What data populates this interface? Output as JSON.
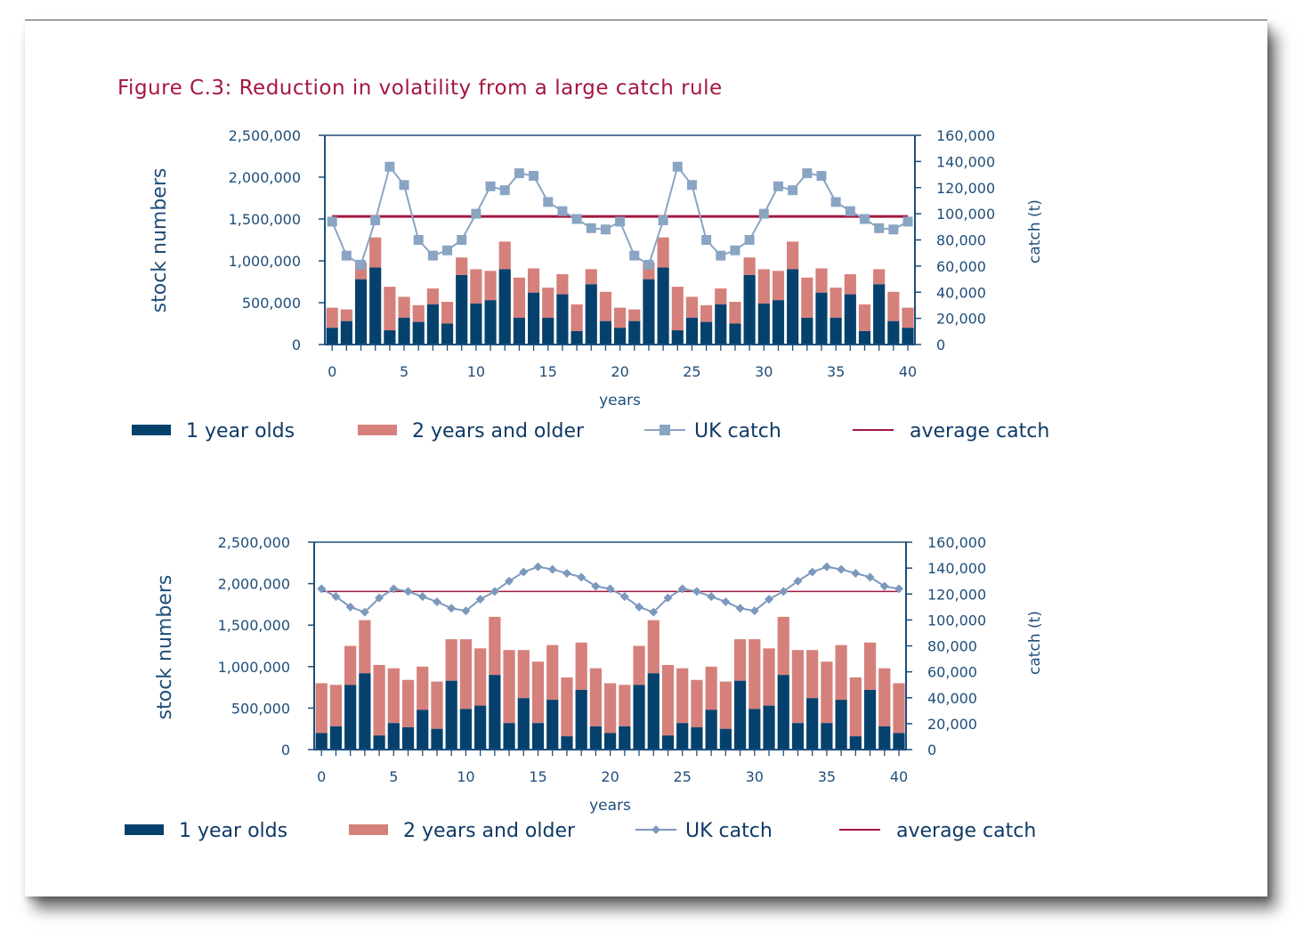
{
  "title": "Figure C.3: Reduction in volatility from a large catch rule",
  "colors": {
    "one_year": "#06416e",
    "two_years": "#d5807b",
    "uk_catch_top": "#8aa4c3",
    "uk_catch_bottom": "#7c98bc",
    "average": "#a3173f",
    "axis": "#1f4e79"
  },
  "charts": [
    {
      "id": "top",
      "type": "bar",
      "stacked": true,
      "xlabel": "years",
      "ylabel_left": "stock numbers",
      "ylabel_right": "catch (t)",
      "xlim": [
        0,
        40
      ],
      "xticks": [
        "0",
        "5",
        "10",
        "15",
        "20",
        "25",
        "30",
        "35",
        "40"
      ],
      "ylim_left": [
        0,
        2500000
      ],
      "yticks_left": [
        "0",
        "500,000",
        "1,000,000",
        "1,500,000",
        "2,000,000",
        "2,500,000"
      ],
      "ylim_right": [
        0,
        160000
      ],
      "yticks_right": [
        "0",
        "20,000",
        "40,000",
        "60,000",
        "80,000",
        "100,000",
        "120,000",
        "140,000",
        "160,000"
      ],
      "marker": "square",
      "legend": {
        "one_year": "1 year olds",
        "two_years": "2 years and older",
        "uk_catch": "UK catch",
        "average": "average catch"
      },
      "legend_position": "bottom",
      "chart_data": {
        "type": "bar",
        "x": [
          0,
          1,
          2,
          3,
          4,
          5,
          6,
          7,
          8,
          9,
          10,
          11,
          12,
          13,
          14,
          15,
          16,
          17,
          18,
          19,
          20,
          21,
          22,
          23,
          24,
          25,
          26,
          27,
          28,
          29,
          30,
          31,
          32,
          33,
          34,
          35,
          36,
          37,
          38,
          39,
          40
        ],
        "series": [
          {
            "name": "1 year olds",
            "values": [
              200000,
              280000,
              780000,
              920000,
              170000,
              320000,
              270000,
              480000,
              250000,
              830000,
              490000,
              530000,
              900000,
              320000,
              620000,
              320000,
              600000,
              160000,
              720000,
              280000,
              200000,
              280000,
              780000,
              920000,
              170000,
              320000,
              270000,
              480000,
              250000,
              830000,
              490000,
              530000,
              900000,
              320000,
              620000,
              320000,
              600000,
              160000,
              720000,
              280000,
              200000
            ]
          },
          {
            "name": "2 years and older",
            "values": [
              240000,
              140000,
              200000,
              360000,
              520000,
              250000,
              200000,
              190000,
              260000,
              210000,
              410000,
              350000,
              330000,
              480000,
              290000,
              360000,
              240000,
              320000,
              180000,
              350000,
              240000,
              140000,
              200000,
              360000,
              520000,
              250000,
              200000,
              190000,
              260000,
              210000,
              410000,
              350000,
              330000,
              480000,
              290000,
              360000,
              240000,
              320000,
              180000,
              350000,
              240000
            ]
          },
          {
            "name": "UK catch",
            "axis": "right",
            "values": [
              94000,
              68000,
              61000,
              95000,
              136000,
              122000,
              80000,
              68000,
              72000,
              80000,
              100000,
              121000,
              118000,
              131000,
              129000,
              109000,
              102000,
              96000,
              89000,
              88000,
              94000,
              68000,
              61000,
              95000,
              136000,
              122000,
              80000,
              68000,
              72000,
              80000,
              100000,
              121000,
              118000,
              131000,
              129000,
              109000,
              102000,
              96000,
              89000,
              88000,
              94000
            ]
          },
          {
            "name": "average catch",
            "axis": "right",
            "value": 98000
          }
        ]
      }
    },
    {
      "id": "bottom",
      "type": "bar",
      "stacked": true,
      "xlabel": "years",
      "ylabel_left": "stock numbers",
      "ylabel_right": "catch (t)",
      "xlim": [
        0,
        40
      ],
      "xticks": [
        "0",
        "5",
        "10",
        "15",
        "20",
        "25",
        "30",
        "35",
        "40"
      ],
      "ylim_left": [
        0,
        2500000
      ],
      "yticks_left": [
        "0",
        "500,000",
        "1,000,000",
        "1,500,000",
        "2,000,000",
        "2,500,000"
      ],
      "ylim_right": [
        0,
        160000
      ],
      "yticks_right": [
        "0",
        "20,000",
        "40,000",
        "60,000",
        "80,000",
        "100,000",
        "120,000",
        "140,000",
        "160,000"
      ],
      "marker": "diamond",
      "legend": {
        "one_year": "1 year olds",
        "two_years": "2 years and older",
        "uk_catch": "UK catch",
        "average": "average catch"
      },
      "legend_position": "bottom",
      "chart_data": {
        "type": "bar",
        "x": [
          0,
          1,
          2,
          3,
          4,
          5,
          6,
          7,
          8,
          9,
          10,
          11,
          12,
          13,
          14,
          15,
          16,
          17,
          18,
          19,
          20,
          21,
          22,
          23,
          24,
          25,
          26,
          27,
          28,
          29,
          30,
          31,
          32,
          33,
          34,
          35,
          36,
          37,
          38,
          39,
          40
        ],
        "series": [
          {
            "name": "1 year olds",
            "values": [
              200000,
              280000,
              780000,
              920000,
              170000,
              320000,
              270000,
              480000,
              250000,
              830000,
              490000,
              530000,
              900000,
              320000,
              620000,
              320000,
              600000,
              160000,
              720000,
              280000,
              200000,
              280000,
              780000,
              920000,
              170000,
              320000,
              270000,
              480000,
              250000,
              830000,
              490000,
              530000,
              900000,
              320000,
              620000,
              320000,
              600000,
              160000,
              720000,
              280000,
              200000
            ]
          },
          {
            "name": "2 years and older",
            "values": [
              600000,
              500000,
              470000,
              640000,
              850000,
              660000,
              570000,
              520000,
              570000,
              500000,
              840000,
              690000,
              700000,
              880000,
              580000,
              740000,
              660000,
              710000,
              570000,
              700000,
              600000,
              500000,
              470000,
              640000,
              850000,
              660000,
              570000,
              520000,
              570000,
              500000,
              840000,
              690000,
              700000,
              880000,
              580000,
              740000,
              660000,
              710000,
              570000,
              700000,
              600000
            ]
          },
          {
            "name": "UK catch",
            "axis": "right",
            "values": [
              124000,
              118000,
              110000,
              106000,
              117000,
              124000,
              122000,
              118000,
              114000,
              109000,
              107000,
              116000,
              122000,
              130000,
              137000,
              141000,
              139000,
              136000,
              133000,
              126000,
              124000,
              118000,
              110000,
              106000,
              117000,
              124000,
              122000,
              118000,
              114000,
              109000,
              107000,
              116000,
              122000,
              130000,
              137000,
              141000,
              139000,
              136000,
              133000,
              126000,
              124000
            ]
          },
          {
            "name": "average catch",
            "axis": "right",
            "value": 122000
          }
        ]
      }
    }
  ]
}
